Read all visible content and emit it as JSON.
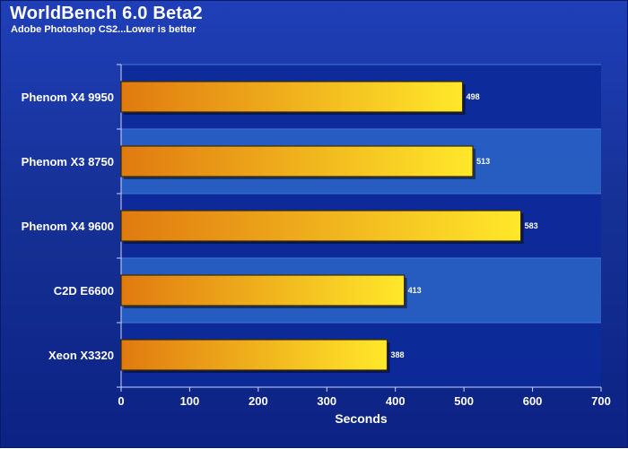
{
  "chart_data": {
    "type": "bar",
    "orientation": "horizontal",
    "title": "WorldBench 6.0 Beta2",
    "subtitle": "Adobe Photoshop CS2...Lower is better",
    "categories": [
      "Phenom X4 9950",
      "Phenom X3 8750",
      "Phenom X4 9600",
      "C2D E6600",
      "Xeon X3320"
    ],
    "values": [
      498,
      513,
      583,
      413,
      388
    ],
    "xlabel": "Seconds",
    "ylabel": "",
    "xlim": [
      0,
      700
    ],
    "xticks": [
      0,
      100,
      200,
      300,
      400,
      500,
      600,
      700
    ],
    "grid": false,
    "legend": "none",
    "colors": {
      "bar_start": "#e07a10",
      "bar_end": "#ffe82a",
      "bar_stroke": "#3a2a00",
      "background": "#1a38a8",
      "band_light": "#2a64c8",
      "band_dark": "#0d2a9a"
    }
  }
}
